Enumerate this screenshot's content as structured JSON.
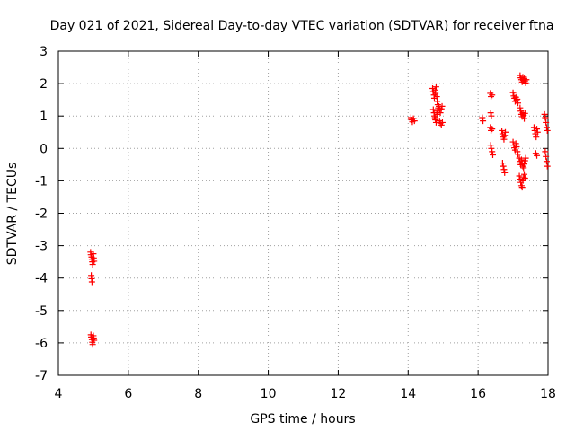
{
  "chart_data": {
    "type": "scatter",
    "title": "Day 021 of 2021, Sidereal Day-to-day VTEC variation (SDTVAR) for receiver ftna",
    "xlabel": "GPS time / hours",
    "ylabel": "SDTVAR / TECUs",
    "xlim": [
      4,
      18
    ],
    "ylim": [
      -7,
      3
    ],
    "xticks": [
      4,
      6,
      8,
      10,
      12,
      14,
      16,
      18
    ],
    "yticks": [
      -7,
      -6,
      -5,
      -4,
      -3,
      -2,
      -1,
      0,
      1,
      2,
      3
    ],
    "grid": true,
    "marker": "+",
    "color": "#ff0000",
    "series": [
      {
        "name": "SDTVAR",
        "points": [
          [
            4.92,
            -3.2
          ],
          [
            4.93,
            -3.28
          ],
          [
            4.95,
            -3.35
          ],
          [
            4.96,
            -3.42
          ],
          [
            4.97,
            -3.5
          ],
          [
            4.98,
            -3.58
          ],
          [
            5.0,
            -3.25
          ],
          [
            5.01,
            -3.38
          ],
          [
            5.02,
            -3.48
          ],
          [
            4.94,
            -3.92
          ],
          [
            4.95,
            -4.02
          ],
          [
            4.96,
            -4.12
          ],
          [
            4.93,
            -5.75
          ],
          [
            4.94,
            -5.82
          ],
          [
            4.96,
            -5.9
          ],
          [
            4.97,
            -5.98
          ],
          [
            4.98,
            -6.05
          ],
          [
            5.0,
            -5.78
          ],
          [
            5.01,
            -5.85
          ],
          [
            5.02,
            -5.92
          ],
          [
            14.08,
            0.95
          ],
          [
            14.1,
            0.88
          ],
          [
            14.12,
            0.82
          ],
          [
            14.15,
            0.92
          ],
          [
            14.18,
            0.85
          ],
          [
            14.7,
            1.85
          ],
          [
            14.72,
            1.75
          ],
          [
            14.74,
            1.65
          ],
          [
            14.75,
            1.55
          ],
          [
            14.77,
            1.8
          ],
          [
            14.78,
            1.7
          ],
          [
            14.8,
            1.9
          ],
          [
            14.82,
            1.6
          ],
          [
            14.83,
            1.45
          ],
          [
            14.85,
            1.35
          ],
          [
            14.72,
            1.2
          ],
          [
            14.74,
            1.1
          ],
          [
            14.75,
            1.0
          ],
          [
            14.77,
            0.95
          ],
          [
            14.78,
            0.88
          ],
          [
            14.8,
            0.8
          ],
          [
            14.82,
            1.05
          ],
          [
            14.84,
            1.15
          ],
          [
            14.86,
            1.25
          ],
          [
            14.88,
            1.3
          ],
          [
            14.9,
            1.2
          ],
          [
            14.92,
            1.1
          ],
          [
            14.95,
            1.22
          ],
          [
            14.97,
            1.3
          ],
          [
            14.9,
            0.85
          ],
          [
            14.92,
            0.78
          ],
          [
            14.95,
            0.72
          ],
          [
            14.98,
            0.8
          ],
          [
            16.12,
            0.95
          ],
          [
            16.14,
            0.85
          ],
          [
            16.35,
            1.7
          ],
          [
            16.37,
            1.6
          ],
          [
            16.4,
            1.65
          ],
          [
            16.36,
            1.1
          ],
          [
            16.38,
            1.0
          ],
          [
            16.35,
            0.65
          ],
          [
            16.37,
            0.55
          ],
          [
            16.4,
            0.6
          ],
          [
            16.36,
            0.1
          ],
          [
            16.38,
            0.0
          ],
          [
            16.4,
            -0.1
          ],
          [
            16.42,
            -0.2
          ],
          [
            16.68,
            0.55
          ],
          [
            16.7,
            0.45
          ],
          [
            16.72,
            0.35
          ],
          [
            16.74,
            0.28
          ],
          [
            16.76,
            0.4
          ],
          [
            16.78,
            0.5
          ],
          [
            16.7,
            -0.45
          ],
          [
            16.72,
            -0.55
          ],
          [
            16.74,
            -0.65
          ],
          [
            16.76,
            -0.75
          ],
          [
            17.0,
            1.72
          ],
          [
            17.02,
            1.62
          ],
          [
            17.04,
            1.55
          ],
          [
            17.06,
            1.45
          ],
          [
            17.08,
            1.58
          ],
          [
            17.1,
            1.48
          ],
          [
            17.12,
            1.52
          ],
          [
            17.14,
            1.4
          ],
          [
            17.0,
            0.2
          ],
          [
            17.02,
            0.1
          ],
          [
            17.04,
            0.02
          ],
          [
            17.06,
            -0.05
          ],
          [
            17.08,
            0.15
          ],
          [
            17.1,
            0.05
          ],
          [
            17.12,
            -0.1
          ],
          [
            17.14,
            -0.18
          ],
          [
            17.2,
            2.25
          ],
          [
            17.22,
            2.18
          ],
          [
            17.24,
            2.12
          ],
          [
            17.26,
            2.05
          ],
          [
            17.28,
            2.2
          ],
          [
            17.3,
            2.1
          ],
          [
            17.32,
            2.15
          ],
          [
            17.34,
            2.08
          ],
          [
            17.36,
            2.02
          ],
          [
            17.38,
            2.12
          ],
          [
            17.2,
            1.25
          ],
          [
            17.22,
            1.15
          ],
          [
            17.24,
            1.05
          ],
          [
            17.26,
            0.98
          ],
          [
            17.28,
            1.1
          ],
          [
            17.3,
            1.02
          ],
          [
            17.32,
            0.92
          ],
          [
            17.34,
            1.08
          ],
          [
            17.18,
            -0.3
          ],
          [
            17.2,
            -0.4
          ],
          [
            17.22,
            -0.5
          ],
          [
            17.24,
            -0.35
          ],
          [
            17.26,
            -0.45
          ],
          [
            17.28,
            -0.55
          ],
          [
            17.3,
            -0.6
          ],
          [
            17.32,
            -0.48
          ],
          [
            17.34,
            -0.38
          ],
          [
            17.36,
            -0.3
          ],
          [
            17.18,
            -0.85
          ],
          [
            17.2,
            -0.95
          ],
          [
            17.22,
            -1.05
          ],
          [
            17.24,
            -1.15
          ],
          [
            17.26,
            -1.2
          ],
          [
            17.28,
            -1.0
          ],
          [
            17.3,
            -0.9
          ],
          [
            17.32,
            -0.8
          ],
          [
            17.34,
            -0.92
          ],
          [
            17.6,
            0.65
          ],
          [
            17.62,
            0.55
          ],
          [
            17.64,
            0.45
          ],
          [
            17.66,
            0.35
          ],
          [
            17.68,
            0.6
          ],
          [
            17.7,
            0.5
          ],
          [
            17.65,
            -0.15
          ],
          [
            17.68,
            -0.22
          ],
          [
            17.9,
            1.05
          ],
          [
            17.92,
            0.95
          ],
          [
            17.94,
            0.8
          ],
          [
            17.96,
            0.65
          ],
          [
            17.98,
            0.55
          ],
          [
            17.92,
            -0.1
          ],
          [
            17.94,
            -0.25
          ],
          [
            17.96,
            -0.4
          ],
          [
            17.98,
            -0.55
          ]
        ]
      }
    ]
  }
}
